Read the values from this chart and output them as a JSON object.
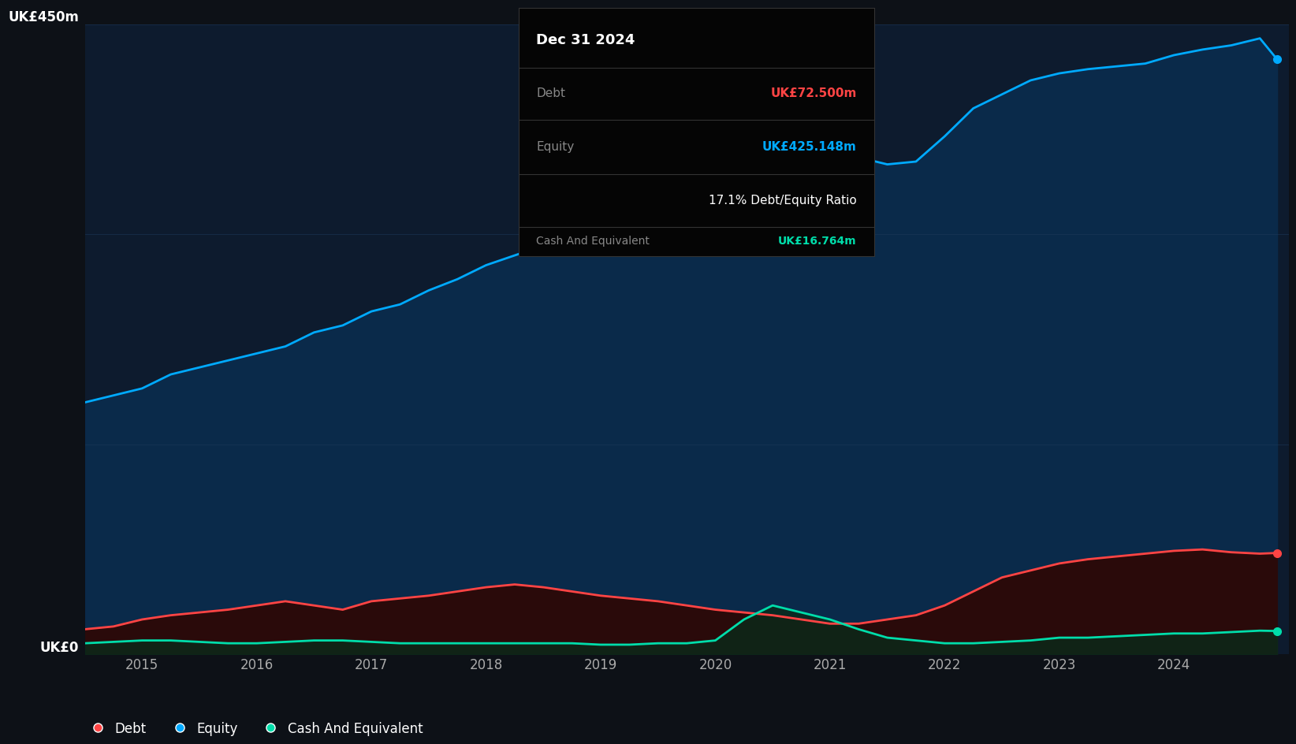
{
  "bg_color": "#0d1117",
  "chart_bg": "#0d1b2e",
  "ylabel_top": "UK£450m",
  "ylabel_bottom": "UK£0",
  "equity_color": "#00aaff",
  "debt_color": "#ff4444",
  "cash_color": "#00ddaa",
  "equity_fill": "#0a2a4a",
  "debt_fill": "#2a0a0a",
  "cash_fill": "#0a2a1a",
  "tooltip_title": "Dec 31 2024",
  "tooltip_debt_label": "Debt",
  "tooltip_debt_value": "UK£72.500m",
  "tooltip_equity_label": "Equity",
  "tooltip_equity_value": "UK£425.148m",
  "tooltip_ratio": "17.1% Debt/Equity Ratio",
  "tooltip_cash_label": "Cash And Equivalent",
  "tooltip_cash_value": "UK£16.764m",
  "legend_items": [
    "Debt",
    "Equity",
    "Cash And Equivalent"
  ],
  "legend_colors": [
    "#ff4444",
    "#00aaff",
    "#00ddaa"
  ],
  "years": [
    2014.5,
    2014.75,
    2015.0,
    2015.25,
    2015.5,
    2015.75,
    2016.0,
    2016.25,
    2016.5,
    2016.75,
    2017.0,
    2017.25,
    2017.5,
    2017.75,
    2018.0,
    2018.25,
    2018.5,
    2018.75,
    2019.0,
    2019.25,
    2019.5,
    2019.75,
    2020.0,
    2020.25,
    2020.5,
    2020.75,
    2021.0,
    2021.25,
    2021.5,
    2021.75,
    2022.0,
    2022.25,
    2022.5,
    2022.75,
    2023.0,
    2023.25,
    2023.5,
    2023.75,
    2024.0,
    2024.25,
    2024.5,
    2024.75,
    2024.9
  ],
  "equity": [
    180,
    185,
    190,
    200,
    205,
    210,
    215,
    220,
    230,
    235,
    245,
    250,
    260,
    268,
    278,
    285,
    292,
    300,
    308,
    310,
    315,
    315,
    310,
    330,
    345,
    355,
    360,
    355,
    350,
    352,
    370,
    390,
    400,
    410,
    415,
    418,
    420,
    422,
    428,
    432,
    435,
    440,
    425
  ],
  "debt": [
    18,
    20,
    25,
    28,
    30,
    32,
    35,
    38,
    35,
    32,
    38,
    40,
    42,
    45,
    48,
    50,
    48,
    45,
    42,
    40,
    38,
    35,
    32,
    30,
    28,
    25,
    22,
    22,
    25,
    28,
    35,
    45,
    55,
    60,
    65,
    68,
    70,
    72,
    74,
    75,
    73,
    72,
    72.5
  ],
  "cash": [
    8,
    9,
    10,
    10,
    9,
    8,
    8,
    9,
    10,
    10,
    9,
    8,
    8,
    8,
    8,
    8,
    8,
    8,
    7,
    7,
    8,
    8,
    10,
    25,
    35,
    30,
    25,
    18,
    12,
    10,
    8,
    8,
    9,
    10,
    12,
    12,
    13,
    14,
    15,
    15,
    16,
    17,
    16.764
  ],
  "xlim": [
    2014.5,
    2025.0
  ],
  "ylim": [
    0,
    450
  ],
  "xticks": [
    2015,
    2016,
    2017,
    2018,
    2019,
    2020,
    2021,
    2022,
    2023,
    2024
  ],
  "grid_color": "#1e3a5a",
  "grid_alpha": 0.5,
  "line_width": 2.0
}
